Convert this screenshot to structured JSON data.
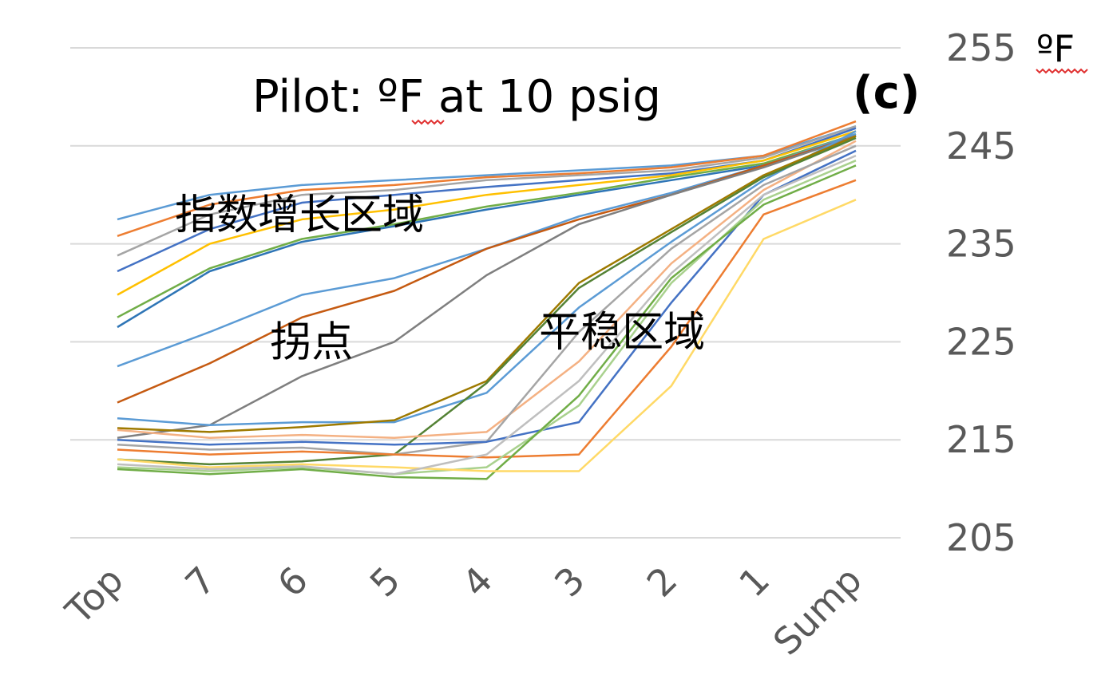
{
  "chart_data": {
    "type": "line",
    "title": "Pilot: ºF at 10 psig",
    "panel_label": "(c)",
    "y_unit": "ºF",
    "categories": [
      "Top",
      "7",
      "6",
      "5",
      "4",
      "3",
      "2",
      "1",
      "Sump"
    ],
    "ylim": [
      205,
      255
    ],
    "yticks": [
      205,
      215,
      225,
      235,
      245,
      255
    ],
    "y_axis_position": "right",
    "grid": true,
    "legend": "none",
    "annotations": [
      {
        "text": "指数增长区域",
        "x": "Top",
        "y": 238
      },
      {
        "text": "拐点",
        "x": "6",
        "y": 225
      },
      {
        "text": "平稳区域",
        "x": "3",
        "y": 226
      }
    ],
    "series": [
      {
        "color": "#5b9bd5",
        "values": [
          237.5,
          240,
          241,
          241.5,
          242,
          242.5,
          243,
          244,
          247
        ]
      },
      {
        "color": "#ed7d31",
        "values": [
          235.8,
          239,
          240.5,
          241,
          241.8,
          242.2,
          242.8,
          244,
          247.5
        ]
      },
      {
        "color": "#a5a5a5",
        "values": [
          233.8,
          238,
          240,
          240.5,
          241.5,
          242,
          242.5,
          243.8,
          247
        ]
      },
      {
        "color": "#4472c4",
        "values": [
          232.2,
          236.5,
          239.2,
          240,
          240.8,
          241.5,
          242.2,
          243.5,
          246.8
        ]
      },
      {
        "color": "#ffc000",
        "values": [
          229.8,
          235,
          237.5,
          238.5,
          240,
          241,
          242,
          243.5,
          246.5
        ]
      },
      {
        "color": "#70ad47",
        "values": [
          227.5,
          232.5,
          235.5,
          237,
          238.8,
          240.2,
          241.8,
          243.2,
          246.2
        ]
      },
      {
        "color": "#2e75b6",
        "values": [
          226.5,
          232.2,
          235.2,
          236.8,
          238.5,
          240,
          241.5,
          243,
          246
        ]
      },
      {
        "color": "#5b9bd5",
        "values": [
          222.5,
          226,
          229.8,
          231.5,
          234.5,
          237.8,
          240.2,
          243,
          246.2
        ]
      },
      {
        "color": "#c55a11",
        "values": [
          218.8,
          222.8,
          227.5,
          230.2,
          234.5,
          237.5,
          240,
          243,
          246
        ]
      },
      {
        "color": "#7f7f7f",
        "values": [
          215.2,
          216.5,
          221.5,
          225,
          231.8,
          237,
          240,
          242.8,
          246
        ]
      },
      {
        "color": "#5b9bd5",
        "values": [
          217.2,
          216.5,
          216.8,
          216.8,
          219.8,
          228.5,
          235.2,
          241.5,
          246.5
        ]
      },
      {
        "color": "#9e7a00",
        "values": [
          216.2,
          215.8,
          216.3,
          217,
          221,
          231,
          236.5,
          242,
          246
        ]
      },
      {
        "color": "#548235",
        "values": [
          213,
          212.5,
          212.8,
          213.5,
          220.8,
          230.5,
          236.2,
          241.8,
          245.8
        ]
      },
      {
        "color": "#f4b183",
        "values": [
          216,
          215.2,
          215.5,
          215.2,
          215.8,
          223,
          233,
          240.5,
          245.5
        ]
      },
      {
        "color": "#a5a5a5",
        "values": [
          214.5,
          214,
          214.2,
          213.5,
          214.8,
          226,
          234.5,
          241,
          245
        ]
      },
      {
        "color": "#4472c4",
        "values": [
          215,
          214.5,
          214.8,
          214.5,
          214.8,
          216.8,
          229,
          240,
          244.5
        ]
      },
      {
        "color": "#ed7d31",
        "values": [
          214,
          213.5,
          213.8,
          213.5,
          213.2,
          213.5,
          224.5,
          238,
          241.5
        ]
      },
      {
        "color": "#a9d18e",
        "values": [
          212.2,
          211.8,
          212.2,
          211.5,
          212.2,
          218.5,
          231,
          239.5,
          243.5
        ]
      },
      {
        "color": "#70ad47",
        "values": [
          212,
          211.5,
          212,
          211.2,
          211,
          219.5,
          231.5,
          239,
          243
        ]
      },
      {
        "color": "#ffd966",
        "values": [
          213,
          212.2,
          212.5,
          212.2,
          211.8,
          211.8,
          220.5,
          235.5,
          239.5
        ]
      },
      {
        "color": "#bfbfbf",
        "values": [
          212.5,
          212,
          212.3,
          211.5,
          213.5,
          221,
          232,
          240,
          244
        ]
      }
    ]
  }
}
